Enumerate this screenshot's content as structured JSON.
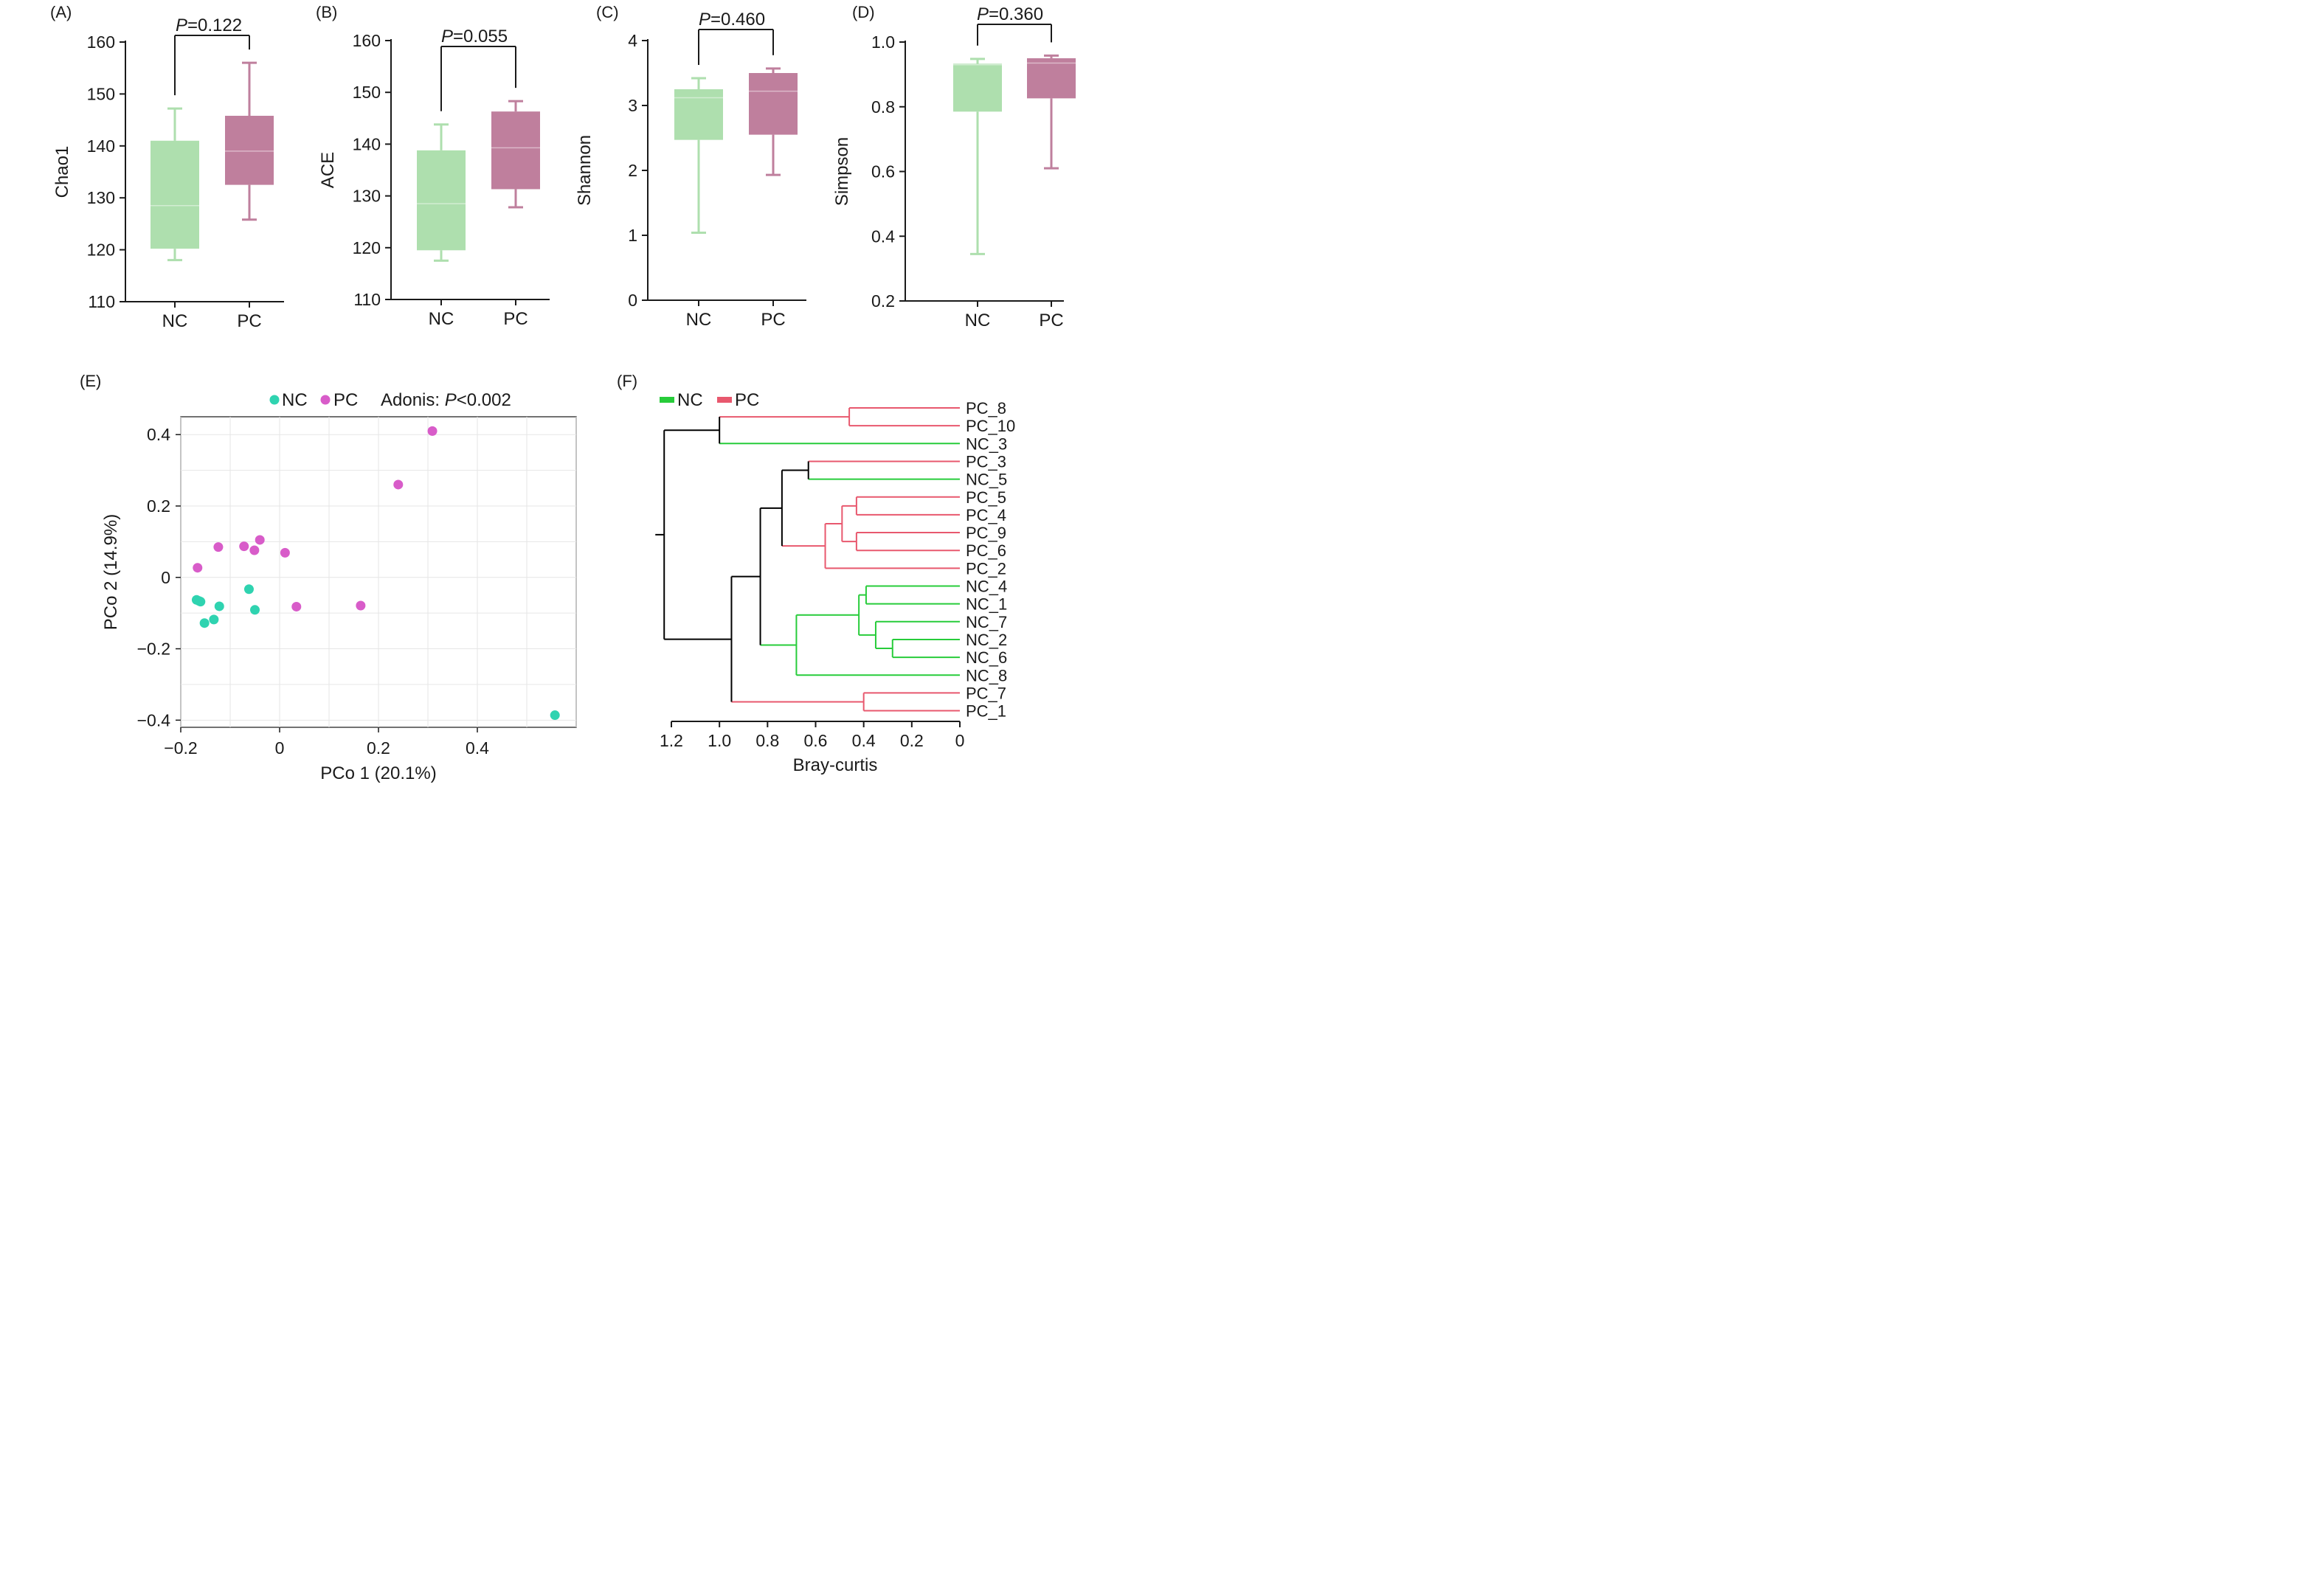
{
  "colors": {
    "NC": "#aedfae",
    "PC": "#bf7f9d",
    "NC_pt": "#2fd3b0",
    "PC_pt": "#d85cc9",
    "NC_tree": "#27cc3a",
    "PC_tree": "#e8586e",
    "tree": "#000000"
  },
  "chart_data": [
    {
      "type": "box",
      "panel": "(A)",
      "ylabel": "Chao1",
      "categories": [
        "NC",
        "PC"
      ],
      "ylim": [
        110,
        160
      ],
      "yticks": [
        "110",
        "120",
        "130",
        "140",
        "150",
        "160"
      ],
      "pvalue": {
        "label": "P",
        "value": "=0.122"
      },
      "boxes": [
        {
          "group": "NC",
          "min": 118,
          "q1": 120.2,
          "median": 128.5,
          "q3": 141,
          "max": 147.2
        },
        {
          "group": "PC",
          "min": 125.8,
          "q1": 132.5,
          "median": 139,
          "q3": 145.8,
          "max": 156
        }
      ]
    },
    {
      "type": "box",
      "panel": "(B)",
      "ylabel": "ACE",
      "categories": [
        "NC",
        "PC"
      ],
      "ylim": [
        110,
        160
      ],
      "yticks": [
        "110",
        "120",
        "130",
        "140",
        "150",
        "160"
      ],
      "pvalue": {
        "label": "P",
        "value": "=0.055"
      },
      "boxes": [
        {
          "group": "NC",
          "min": 117.5,
          "q1": 119.5,
          "median": 128.5,
          "q3": 138.8,
          "max": 143.8
        },
        {
          "group": "PC",
          "min": 127.8,
          "q1": 131.3,
          "median": 139.3,
          "q3": 146.3,
          "max": 148.3
        }
      ]
    },
    {
      "type": "box",
      "panel": "(C)",
      "ylabel": "Shannon",
      "categories": [
        "NC",
        "PC"
      ],
      "ylim": [
        0,
        4
      ],
      "yticks": [
        "0",
        "1",
        "2",
        "3",
        "4"
      ],
      "pvalue": {
        "label": "P",
        "value": "=0.460"
      },
      "boxes": [
        {
          "group": "NC",
          "min": 1.04,
          "q1": 2.47,
          "median": 3.12,
          "q3": 3.25,
          "max": 3.42
        },
        {
          "group": "PC",
          "min": 1.93,
          "q1": 2.55,
          "median": 3.22,
          "q3": 3.5,
          "max": 3.57
        }
      ]
    },
    {
      "type": "box",
      "panel": "(D)",
      "ylabel": "Simpson",
      "categories": [
        "NC",
        "PC"
      ],
      "ylim": [
        0.2,
        1.0
      ],
      "yticks": [
        "0.2",
        "0.4",
        "0.6",
        "0.8",
        "1.0"
      ],
      "pvalue": {
        "label": "P",
        "value": "=0.360"
      },
      "boxes": [
        {
          "group": "NC",
          "min": 0.345,
          "q1": 0.785,
          "median": 0.93,
          "q3": 0.933,
          "max": 0.948
        },
        {
          "group": "PC",
          "min": 0.61,
          "q1": 0.826,
          "median": 0.935,
          "q3": 0.95,
          "max": 0.958
        }
      ]
    },
    {
      "type": "scatter",
      "panel": "(E)",
      "xlabel": "PCo 1 (20.1%)",
      "ylabel": "PCo 2 (14.9%)",
      "xlim": [
        -0.2,
        0.6
      ],
      "ylim": [
        -0.42,
        0.45
      ],
      "xticks": [
        -0.2,
        0,
        0.2,
        0.4
      ],
      "yticks": [
        -0.4,
        -0.2,
        0,
        0.2,
        0.4
      ],
      "xtick_labels": [
        "−0.2",
        "0",
        "0.2",
        "0.4"
      ],
      "ytick_labels": [
        "−0.4",
        "−0.2",
        "0",
        "0.2",
        "0.4"
      ],
      "grid": true,
      "legend": {
        "NC": "NC",
        "PC": "PC",
        "note_prefix": "Adonis: ",
        "note_p": "P",
        "note_value": "<0.002"
      },
      "series": [
        {
          "name": "NC",
          "points": [
            [
              -0.168,
              -0.063
            ],
            [
              -0.163,
              -0.066
            ],
            [
              -0.16,
              -0.068
            ],
            [
              -0.122,
              -0.081
            ],
            [
              -0.152,
              -0.128
            ],
            [
              -0.133,
              -0.118
            ],
            [
              -0.062,
              -0.033
            ],
            [
              -0.05,
              -0.091
            ],
            [
              0.557,
              -0.386
            ]
          ]
        },
        {
          "name": "PC",
          "points": [
            [
              -0.166,
              0.027
            ],
            [
              -0.124,
              0.085
            ],
            [
              -0.072,
              0.087
            ],
            [
              -0.051,
              0.076
            ],
            [
              -0.04,
              0.105
            ],
            [
              0.011,
              0.069
            ],
            [
              0.034,
              -0.082
            ],
            [
              0.164,
              -0.079
            ],
            [
              0.24,
              0.26
            ],
            [
              0.309,
              0.41
            ]
          ]
        }
      ]
    },
    {
      "type": "dendrogram",
      "panel": "(F)",
      "xlabel": "Bray-curtis",
      "xlim": [
        1.2,
        0
      ],
      "xticks": [
        "1.2",
        "1.0",
        "0.8",
        "0.6",
        "0.4",
        "0.2",
        "0"
      ],
      "legend": {
        "NC": "NC",
        "PC": "PC"
      },
      "leaves": [
        {
          "label": "PC_8",
          "group": "PC"
        },
        {
          "label": "PC_10",
          "group": "PC"
        },
        {
          "label": "NC_3",
          "group": "NC"
        },
        {
          "label": "PC_3",
          "group": "PC"
        },
        {
          "label": "NC_5",
          "group": "NC"
        },
        {
          "label": "PC_5",
          "group": "PC"
        },
        {
          "label": "PC_4",
          "group": "PC"
        },
        {
          "label": "PC_9",
          "group": "PC"
        },
        {
          "label": "PC_6",
          "group": "PC"
        },
        {
          "label": "PC_2",
          "group": "PC"
        },
        {
          "label": "NC_4",
          "group": "NC"
        },
        {
          "label": "NC_1",
          "group": "NC"
        },
        {
          "label": "NC_7",
          "group": "NC"
        },
        {
          "label": "NC_2",
          "group": "NC"
        },
        {
          "label": "NC_6",
          "group": "NC"
        },
        {
          "label": "NC_8",
          "group": "NC"
        },
        {
          "label": "PC_7",
          "group": "PC"
        },
        {
          "label": "PC_1",
          "group": "PC"
        }
      ],
      "merges": [
        {
          "a": "PC_8",
          "b": "PC_10",
          "height": 0.46,
          "group": "PC"
        },
        {
          "a": "m0",
          "b": "NC_3",
          "height": 1.0,
          "group": "mixed"
        },
        {
          "a": "PC_3",
          "b": "NC_5",
          "height": 0.63,
          "group": "mixed"
        },
        {
          "a": "PC_5",
          "b": "PC_4",
          "height": 0.43,
          "group": "PC"
        },
        {
          "a": "PC_9",
          "b": "PC_6",
          "height": 0.43,
          "group": "PC"
        },
        {
          "a": "m3",
          "b": "m4",
          "height": 0.49,
          "group": "PC"
        },
        {
          "a": "m5",
          "b": "PC_2",
          "height": 0.56,
          "group": "PC"
        },
        {
          "a": "m2",
          "b": "m6",
          "height": 0.74,
          "group": "mixed"
        },
        {
          "a": "NC_4",
          "b": "NC_1",
          "height": 0.39,
          "group": "NC"
        },
        {
          "a": "NC_2",
          "b": "NC_6",
          "height": 0.28,
          "group": "NC"
        },
        {
          "a": "NC_7",
          "b": "m9",
          "height": 0.35,
          "group": "NC"
        },
        {
          "a": "m8",
          "b": "m10",
          "height": 0.42,
          "group": "NC"
        },
        {
          "a": "m11",
          "b": "NC_8",
          "height": 0.68,
          "group": "NC"
        },
        {
          "a": "m7",
          "b": "m12",
          "height": 0.83,
          "group": "mixed"
        },
        {
          "a": "PC_7",
          "b": "PC_1",
          "height": 0.4,
          "group": "PC"
        },
        {
          "a": "m13",
          "b": "m14",
          "height": 0.95,
          "group": "mixed"
        },
        {
          "a": "m1",
          "b": "m15",
          "height": 1.23,
          "group": "mixed"
        }
      ]
    }
  ]
}
